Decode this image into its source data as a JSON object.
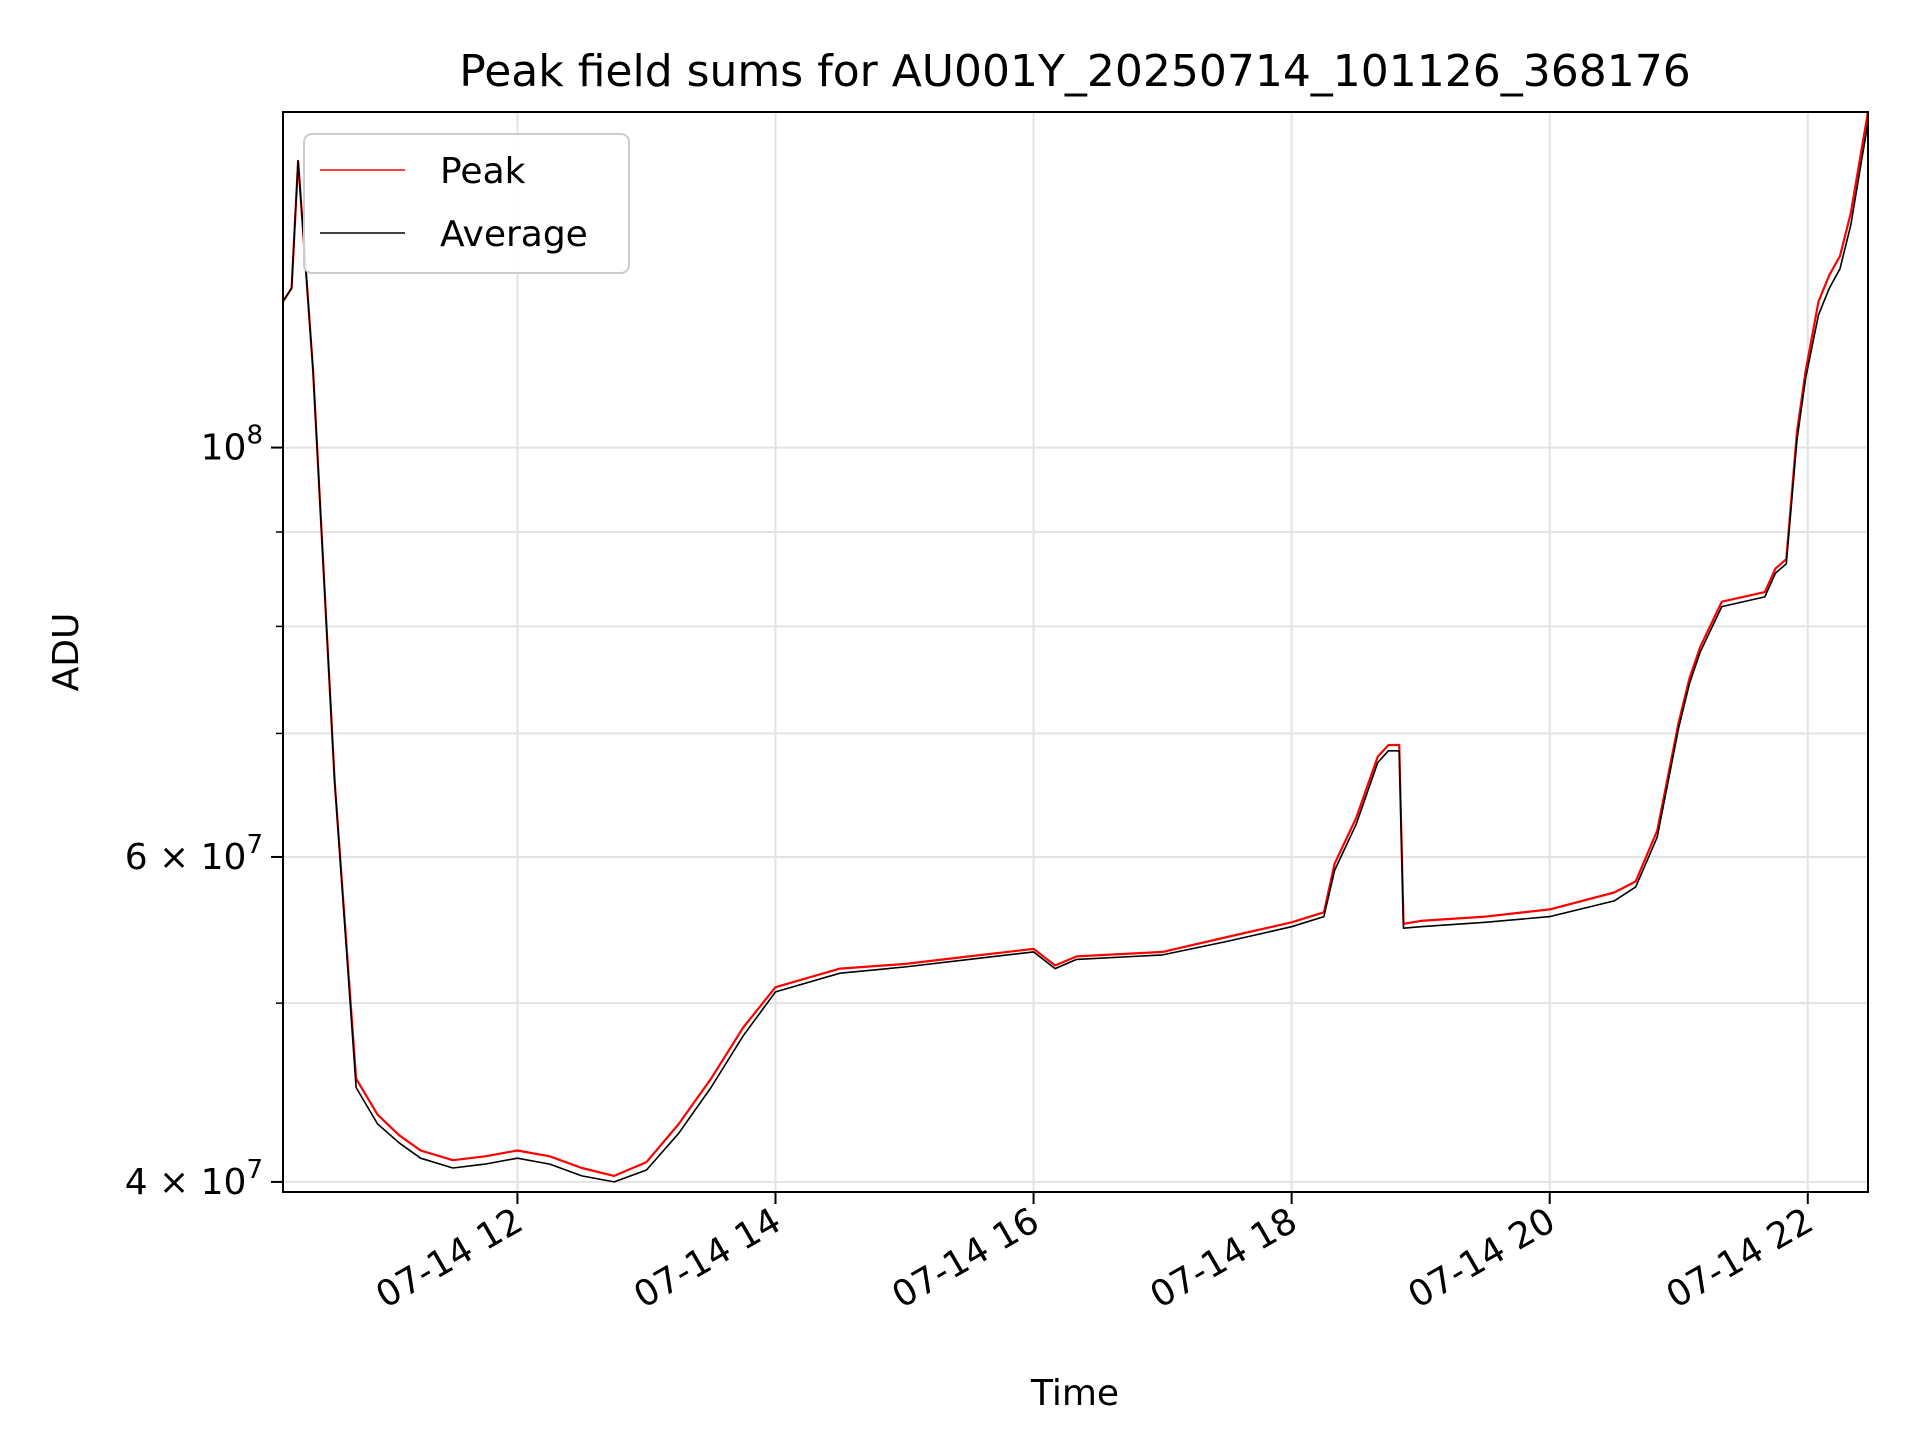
{
  "chart_data": {
    "type": "line",
    "title": "Peak field sums for AU001Y_20250714_101126_368176",
    "xlabel": "Time",
    "ylabel": "ADU",
    "y_scale": "log",
    "ylim": [
      39500000,
      152000000
    ],
    "x_range": [
      "2025-07-14 10:11",
      "2025-07-14 22:28"
    ],
    "x_ticks": [
      {
        "t": "2025-07-14 12:00",
        "label": "07-14 12"
      },
      {
        "t": "2025-07-14 14:00",
        "label": "07-14 14"
      },
      {
        "t": "2025-07-14 16:00",
        "label": "07-14 16"
      },
      {
        "t": "2025-07-14 18:00",
        "label": "07-14 18"
      },
      {
        "t": "2025-07-14 20:00",
        "label": "07-14 20"
      },
      {
        "t": "2025-07-14 22:00",
        "label": "07-14 22"
      }
    ],
    "y_major_ticks": [
      {
        "value": 40000000,
        "label": "4 × 10",
        "exp": "7"
      },
      {
        "value": 60000000,
        "label": "6 × 10",
        "exp": "7"
      },
      {
        "value": 100000000,
        "label": "10",
        "exp": "8"
      }
    ],
    "y_minor_grid": [
      50000000,
      70000000,
      80000000,
      90000000
    ],
    "grid": true,
    "legend": {
      "placement": "upper-left"
    },
    "series": [
      {
        "name": "Peak",
        "color": "#ff0000",
        "x": [
          "2025-07-14 10:11",
          "2025-07-14 10:15",
          "2025-07-14 10:18",
          "2025-07-14 10:25",
          "2025-07-14 10:35",
          "2025-07-14 10:45",
          "2025-07-14 10:55",
          "2025-07-14 11:05",
          "2025-07-14 11:15",
          "2025-07-14 11:30",
          "2025-07-14 11:45",
          "2025-07-14 12:00",
          "2025-07-14 12:15",
          "2025-07-14 12:30",
          "2025-07-14 12:45",
          "2025-07-14 13:00",
          "2025-07-14 13:15",
          "2025-07-14 13:30",
          "2025-07-14 13:45",
          "2025-07-14 14:00",
          "2025-07-14 14:30",
          "2025-07-14 15:00",
          "2025-07-14 15:30",
          "2025-07-14 16:00",
          "2025-07-14 16:10",
          "2025-07-14 16:20",
          "2025-07-14 17:00",
          "2025-07-14 17:30",
          "2025-07-14 18:00",
          "2025-07-14 18:15",
          "2025-07-14 18:20",
          "2025-07-14 18:30",
          "2025-07-14 18:40",
          "2025-07-14 18:45",
          "2025-07-14 18:50",
          "2025-07-14 18:52",
          "2025-07-14 19:00",
          "2025-07-14 19:30",
          "2025-07-14 20:00",
          "2025-07-14 20:30",
          "2025-07-14 20:40",
          "2025-07-14 20:50",
          "2025-07-14 21:00",
          "2025-07-14 21:05",
          "2025-07-14 21:10",
          "2025-07-14 21:20",
          "2025-07-14 21:40",
          "2025-07-14 21:45",
          "2025-07-14 21:50",
          "2025-07-14 21:55",
          "2025-07-14 21:59",
          "2025-07-14 22:05",
          "2025-07-14 22:10",
          "2025-07-14 22:15",
          "2025-07-14 22:20",
          "2025-07-14 22:25",
          "2025-07-14 22:28"
        ],
        "y": [
          120000000,
          122000000,
          143000000,
          110000000,
          66000000,
          45500000,
          43500000,
          42400000,
          41600000,
          41100000,
          41300000,
          41600000,
          41300000,
          40700000,
          40300000,
          41000000,
          43000000,
          45500000,
          48500000,
          51000000,
          52200000,
          52500000,
          53000000,
          53500000,
          52400000,
          53000000,
          53300000,
          54300000,
          55300000,
          56000000,
          59500000,
          63000000,
          68000000,
          69000000,
          69000000,
          55200000,
          55400000,
          55700000,
          56200000,
          57400000,
          58200000,
          62000000,
          71000000,
          75000000,
          78000000,
          82500000,
          83500000,
          86000000,
          87000000,
          102000000,
          110000000,
          120000000,
          124000000,
          127000000,
          134000000,
          145000000,
          152000000
        ]
      },
      {
        "name": "Average",
        "color": "#000000",
        "x": [
          "2025-07-14 10:11",
          "2025-07-14 10:15",
          "2025-07-14 10:18",
          "2025-07-14 10:25",
          "2025-07-14 10:35",
          "2025-07-14 10:45",
          "2025-07-14 10:55",
          "2025-07-14 11:05",
          "2025-07-14 11:15",
          "2025-07-14 11:30",
          "2025-07-14 11:45",
          "2025-07-14 12:00",
          "2025-07-14 12:15",
          "2025-07-14 12:30",
          "2025-07-14 12:45",
          "2025-07-14 13:00",
          "2025-07-14 13:15",
          "2025-07-14 13:30",
          "2025-07-14 13:45",
          "2025-07-14 14:00",
          "2025-07-14 14:30",
          "2025-07-14 15:00",
          "2025-07-14 15:30",
          "2025-07-14 16:00",
          "2025-07-14 16:10",
          "2025-07-14 16:20",
          "2025-07-14 17:00",
          "2025-07-14 17:30",
          "2025-07-14 18:00",
          "2025-07-14 18:15",
          "2025-07-14 18:20",
          "2025-07-14 18:30",
          "2025-07-14 18:40",
          "2025-07-14 18:45",
          "2025-07-14 18:50",
          "2025-07-14 18:52",
          "2025-07-14 19:00",
          "2025-07-14 19:30",
          "2025-07-14 20:00",
          "2025-07-14 20:30",
          "2025-07-14 20:40",
          "2025-07-14 20:50",
          "2025-07-14 21:00",
          "2025-07-14 21:05",
          "2025-07-14 21:10",
          "2025-07-14 21:20",
          "2025-07-14 21:40",
          "2025-07-14 21:45",
          "2025-07-14 21:50",
          "2025-07-14 21:55",
          "2025-07-14 21:59",
          "2025-07-14 22:05",
          "2025-07-14 22:10",
          "2025-07-14 22:15",
          "2025-07-14 22:20",
          "2025-07-14 22:25",
          "2025-07-14 22:28"
        ],
        "y": [
          120000000,
          122000000,
          143000000,
          110000000,
          66000000,
          45000000,
          43000000,
          42000000,
          41200000,
          40700000,
          40900000,
          41200000,
          40900000,
          40300000,
          40000000,
          40600000,
          42500000,
          45000000,
          48000000,
          50700000,
          51900000,
          52300000,
          52800000,
          53300000,
          52200000,
          52800000,
          53100000,
          54000000,
          55000000,
          55700000,
          59000000,
          62500000,
          67500000,
          68500000,
          68500000,
          54900000,
          55000000,
          55300000,
          55700000,
          56800000,
          57800000,
          61500000,
          70500000,
          74500000,
          77500000,
          82000000,
          83000000,
          85500000,
          86500000,
          101000000,
          109000000,
          118000000,
          122000000,
          125000000,
          132000000,
          143000000,
          150000000
        ]
      }
    ]
  }
}
